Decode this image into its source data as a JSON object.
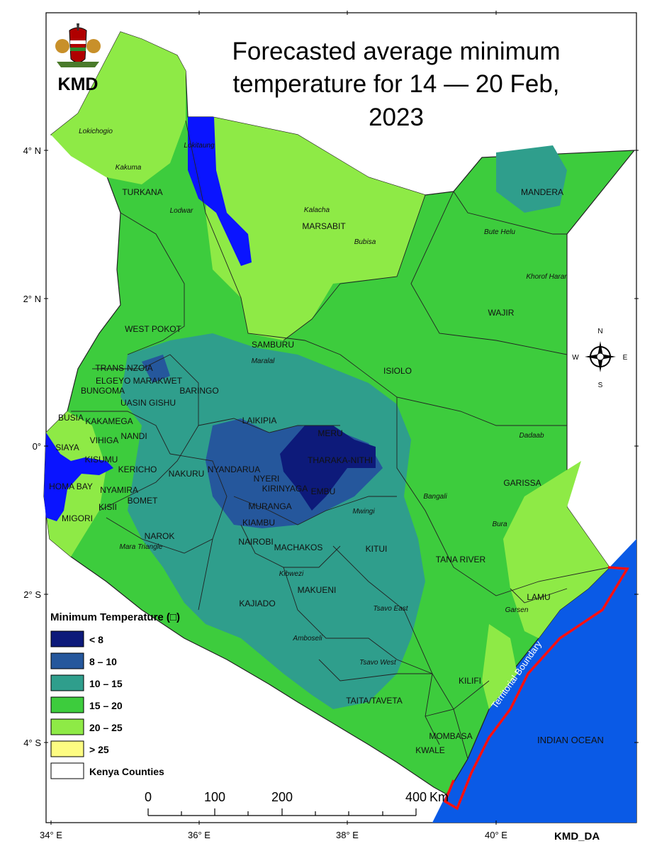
{
  "title_lines": [
    "Forecasted average minimum",
    "temperature for 14 — 20 Feb,",
    "2023"
  ],
  "logo_text": "KMD",
  "credit": "KMD_DA",
  "compass": {
    "n": "N",
    "s": "S",
    "e": "E",
    "w": "W"
  },
  "lat_labels": [
    "4° N",
    "2° N",
    "0°",
    "2° S",
    "4° S"
  ],
  "lon_labels": [
    "34° E",
    "36° E",
    "38° E",
    "40° E"
  ],
  "scale": {
    "ticks": [
      "0",
      "100",
      "200",
      "400"
    ],
    "unit": "Km"
  },
  "ocean_label": "INDIAN OCEAN",
  "boundary_label": "Territorial Boundary",
  "legend": {
    "title": "Minimum Temperature (□)",
    "items": [
      {
        "label": "< 8",
        "color": "#0d1a7a"
      },
      {
        "label": "8 – 10",
        "color": "#25579c"
      },
      {
        "label": "10 – 15",
        "color": "#2f9e8c"
      },
      {
        "label": "15 – 20",
        "color": "#3dcc3d"
      },
      {
        "label": "20 – 25",
        "color": "#8eea46"
      },
      {
        "label": "> 25",
        "color": "#fdfc82"
      }
    ],
    "counties_label": "Kenya Counties"
  },
  "counties": [
    "TURKANA",
    "MARSABIT",
    "MANDERA",
    "WAJIR",
    "WEST POKOT",
    "SAMBURU",
    "ISIOLO",
    "TRANS-NZOIA",
    "ELGEYO MARAKWET",
    "BUNGOMA",
    "BARINGO",
    "UASIN GISHU",
    "BUSIA",
    "KAKAMEGA",
    "LAIKIPIA",
    "MERU",
    "SIAYA",
    "VIHIGA",
    "NANDI",
    "KISUMU",
    "KERICHO",
    "NYANDARUA",
    "THARAKA-NITHI",
    "GARISSA",
    "NYERI",
    "KIRINYAGA",
    "EMBU",
    "HOMA BAY",
    "NYAMIRA",
    "NAKURU",
    "BOMET",
    "KISII",
    "MURANGA",
    "MIGORI",
    "KIAMBU",
    "NAROK",
    "NAIROBI",
    "MACHAKOS",
    "KITUI",
    "TANA RIVER",
    "LAMU",
    "MAKUENI",
    "KAJIADO",
    "KILIFI",
    "TAITA/TAVETA",
    "MOMBASA",
    "KWALE"
  ],
  "towns": [
    "Lokichogio",
    "Kakuma",
    "Lodwar",
    "Lokitaung",
    "Kalacha",
    "Bubisa",
    "Bute Helu",
    "Khorof Harar",
    "Maralal",
    "Dadaab",
    "Bangali",
    "Mwingi",
    "Bura",
    "Mara Triangle",
    "Kibwezi",
    "Garsen",
    "Tsavo East",
    "Amboseli",
    "Tsavo West"
  ]
}
